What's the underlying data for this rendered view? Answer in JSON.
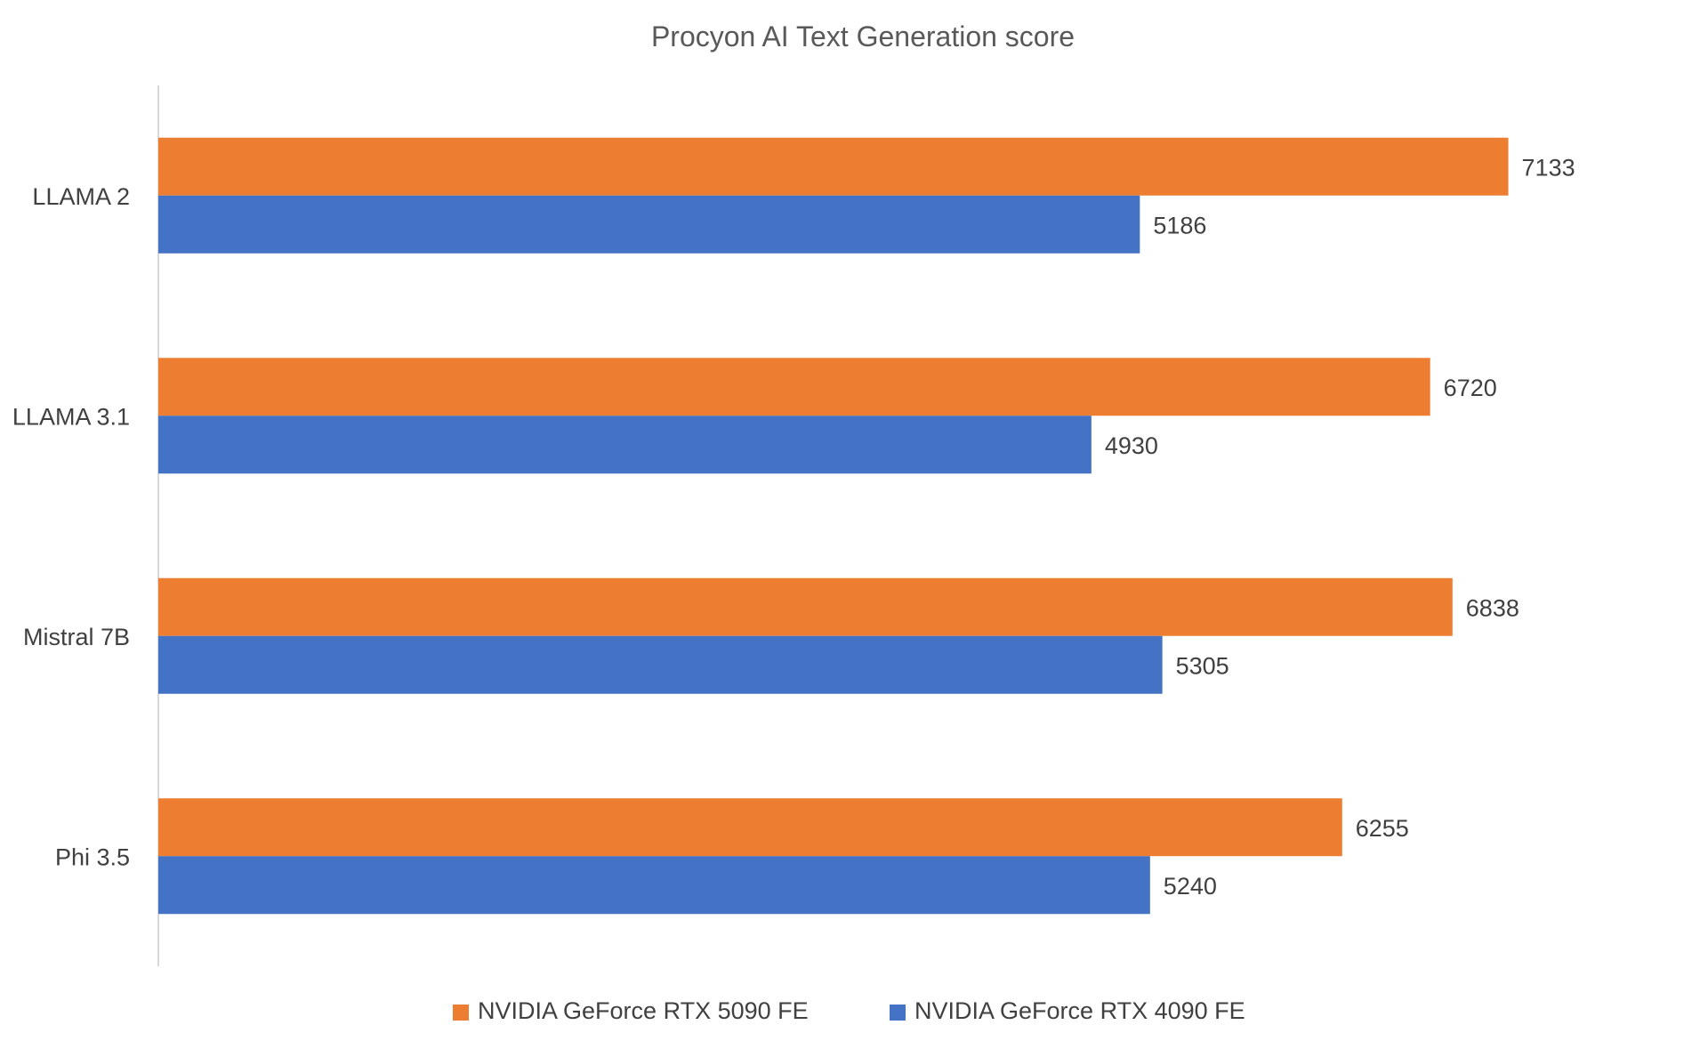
{
  "chart_data": {
    "type": "bar",
    "orientation": "horizontal",
    "title": "Procyon AI Text Generation score",
    "xlabel": "",
    "ylabel": "",
    "categories": [
      "LLAMA 2",
      "LLAMA 3.1",
      "Mistral 7B",
      "Phi 3.5"
    ],
    "series": [
      {
        "name": "NVIDIA GeForce RTX 5090 FE",
        "color": "#ED7D31",
        "values": [
          7133,
          6720,
          6838,
          6255
        ]
      },
      {
        "name": "NVIDIA GeForce RTX 4090 FE",
        "color": "#4472C4",
        "values": [
          5186,
          4930,
          5305,
          5240
        ]
      }
    ],
    "xlim": [
      0,
      8000
    ],
    "grid": false,
    "data_labels": true,
    "legend_position": "bottom"
  }
}
